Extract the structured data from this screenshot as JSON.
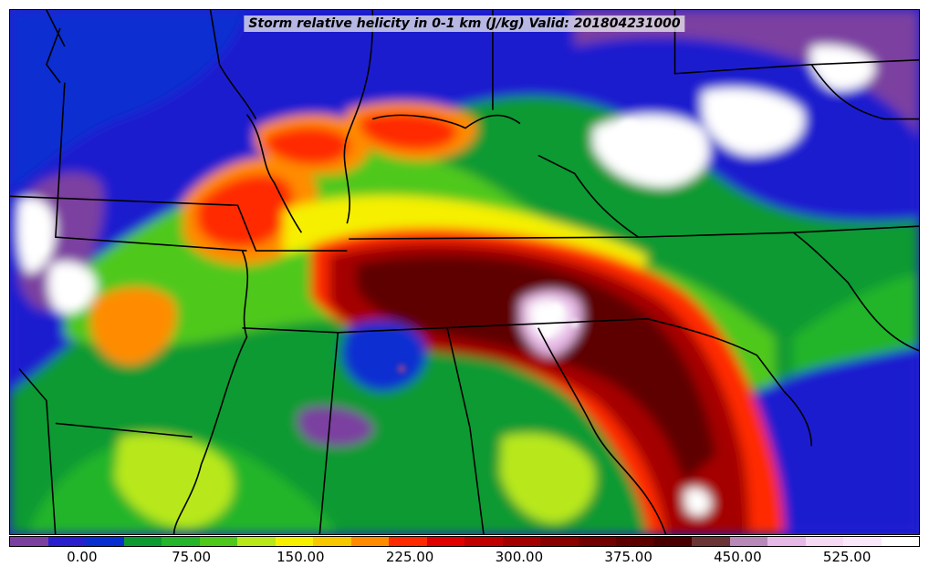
{
  "title": "Storm relative helicity in 0-1 km (J/kg) Valid: 201804231000",
  "colorbar": {
    "min": -50,
    "max": 575,
    "colors": [
      "#7b3fa0",
      "#2a1fcf",
      "#0a2fd0",
      "#0d9a30",
      "#24b52a",
      "#4fc81c",
      "#b8e81a",
      "#f6f000",
      "#f7c800",
      "#ff8c00",
      "#ff2a00",
      "#e00000",
      "#c00000",
      "#a50000",
      "#8a0000",
      "#730000",
      "#5e0000",
      "#4a0000",
      "#6b3535",
      "#b888b8",
      "#e6b8e6",
      "#f5d9f5",
      "#fae8fa",
      "#ffffff"
    ],
    "ticks": [
      "0.00",
      "75.00",
      "150.00",
      "225.00",
      "300.00",
      "375.00",
      "450.00",
      "525.00"
    ],
    "tick_values": [
      0,
      75,
      150,
      225,
      300,
      375,
      450,
      525
    ]
  }
}
